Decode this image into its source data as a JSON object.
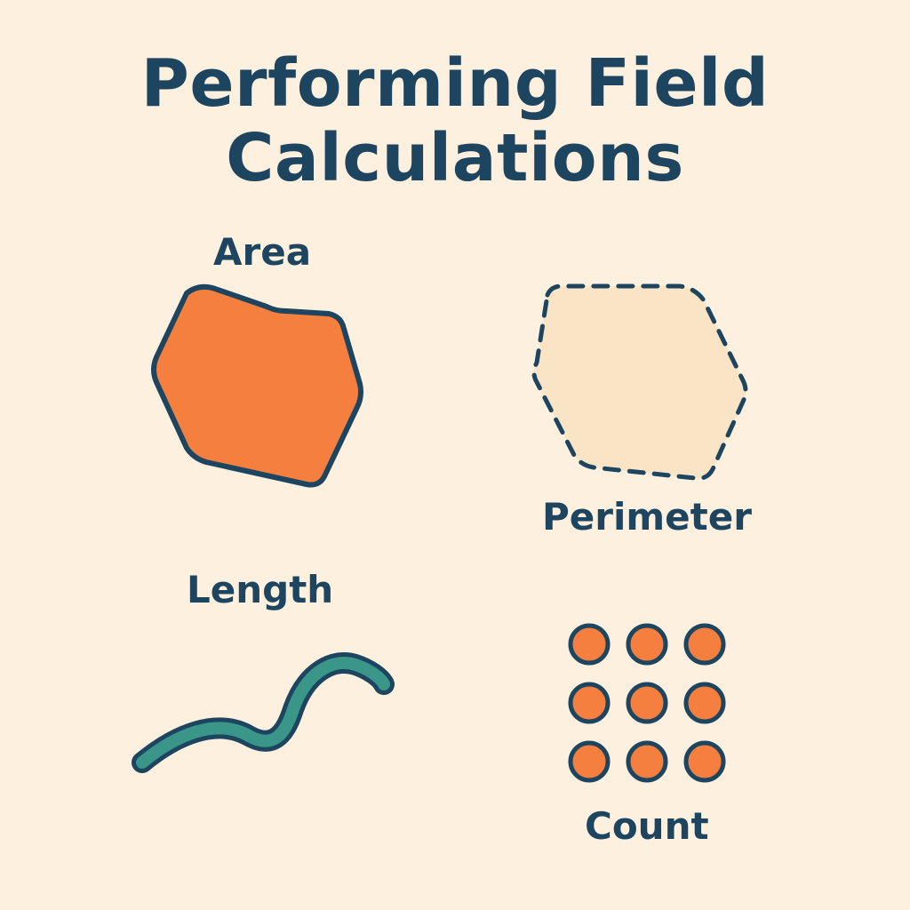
{
  "title": {
    "line1": "Performing Field",
    "line2": "Calculations"
  },
  "labels": {
    "area": "Area",
    "perimeter": "Perimeter",
    "length": "Length",
    "count": "Count"
  },
  "colors": {
    "background": "#fdf0df",
    "ink": "#1d4560",
    "orange": "#f47f3f",
    "teal": "#3a9688",
    "sand": "#f9e4c6"
  },
  "icons": {
    "area": "filled-polygon-icon",
    "perimeter": "dashed-polygon-icon",
    "length": "wavy-line-icon",
    "count": "point-grid-icon"
  }
}
